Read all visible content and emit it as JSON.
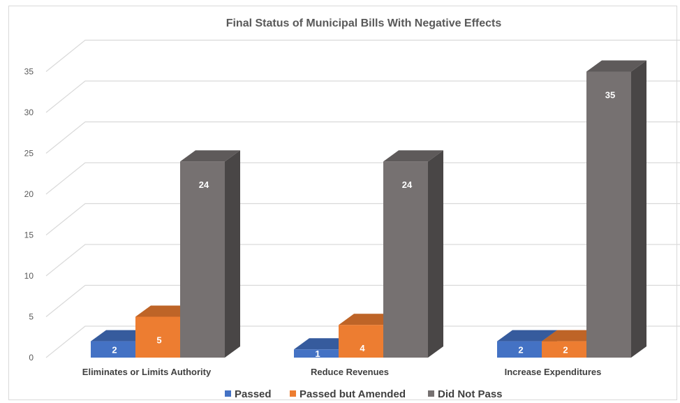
{
  "chart_data": {
    "type": "bar",
    "title": "Final Status of Municipal Bills With Negative Effects",
    "categories": [
      "Eliminates or Limits Authority",
      "Reduce Revenues",
      "Increase Expenditures"
    ],
    "series": [
      {
        "name": "Passed",
        "values": [
          2,
          1,
          2
        ],
        "color": "#4472c4"
      },
      {
        "name": "Passed but Amended",
        "values": [
          5,
          4,
          2
        ],
        "color": "#ed7d31"
      },
      {
        "name": "Did Not Pass",
        "values": [
          24,
          24,
          35
        ],
        "color": "#767171"
      }
    ],
    "ylim": [
      0,
      35
    ],
    "yticks": [
      0,
      5,
      10,
      15,
      20,
      25,
      30,
      35
    ],
    "grid": true,
    "legend": "bottom",
    "style": "3d-column",
    "data_labels": true
  }
}
